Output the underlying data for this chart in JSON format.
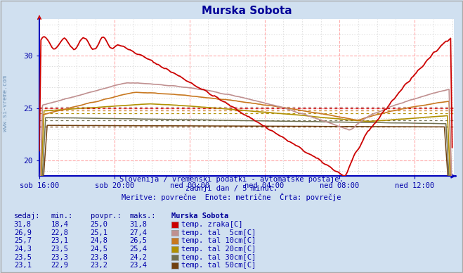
{
  "title": "Murska Sobota",
  "title_color": "#000099",
  "bg_color": "#d0e0f0",
  "plot_bg_color": "#ffffff",
  "grid_color_major": "#ffaaaa",
  "grid_color_minor": "#cccccc",
  "axis_color": "#0000bb",
  "tick_label_color": "#0000aa",
  "subtitle_lines": [
    "Slovenija / vremenski podatki - avtomatske postaje.",
    "zadnji dan / 5 minut.",
    "Meritve: povrečne  Enote: metrične  Črta: povrečje"
  ],
  "subtitle_color": "#0000aa",
  "watermark": "www.si-vreme.com",
  "watermark_color": "#7799bb",
  "x_ticks_labels": [
    "sob 16:00",
    "sob 20:00",
    "ned 00:00",
    "ned 04:00",
    "ned 08:00",
    "ned 12:00"
  ],
  "x_ticks_pos": [
    0,
    48,
    96,
    144,
    192,
    240
  ],
  "y_ticks": [
    20,
    25,
    30
  ],
  "ylim": [
    18.5,
    33.5
  ],
  "xlim": [
    0,
    265
  ],
  "series": {
    "temp_zraka": {
      "color": "#cc0000",
      "avg": 25.0
    },
    "temp_tal_5cm": {
      "color": "#c09090",
      "avg": 25.1
    },
    "temp_tal_10cm": {
      "color": "#c87820",
      "avg": 24.8
    },
    "temp_tal_20cm": {
      "color": "#b09000",
      "avg": 24.5
    },
    "temp_tal_30cm": {
      "color": "#707050",
      "avg": 23.8
    },
    "temp_tal_50cm": {
      "color": "#704010",
      "avg": 23.2
    }
  },
  "table_header": [
    "sedaj:",
    "min.:",
    "povpr.:",
    "maks.:",
    "Murska Sobota"
  ],
  "table_rows": [
    [
      "31,8",
      "18,4",
      "25,0",
      "31,8",
      "temp. zraka[C]",
      "#cc0000"
    ],
    [
      "26,9",
      "22,8",
      "25,1",
      "27,4",
      "temp. tal  5cm[C]",
      "#c09090"
    ],
    [
      "25,7",
      "23,1",
      "24,8",
      "26,5",
      "temp. tal 10cm[C]",
      "#c87820"
    ],
    [
      "24,3",
      "23,5",
      "24,5",
      "25,4",
      "temp. tal 20cm[C]",
      "#b09000"
    ],
    [
      "23,5",
      "23,3",
      "23,8",
      "24,2",
      "temp. tal 30cm[C]",
      "#707050"
    ],
    [
      "23,1",
      "22,9",
      "23,2",
      "23,4",
      "temp. tal 50cm[C]",
      "#704010"
    ]
  ]
}
